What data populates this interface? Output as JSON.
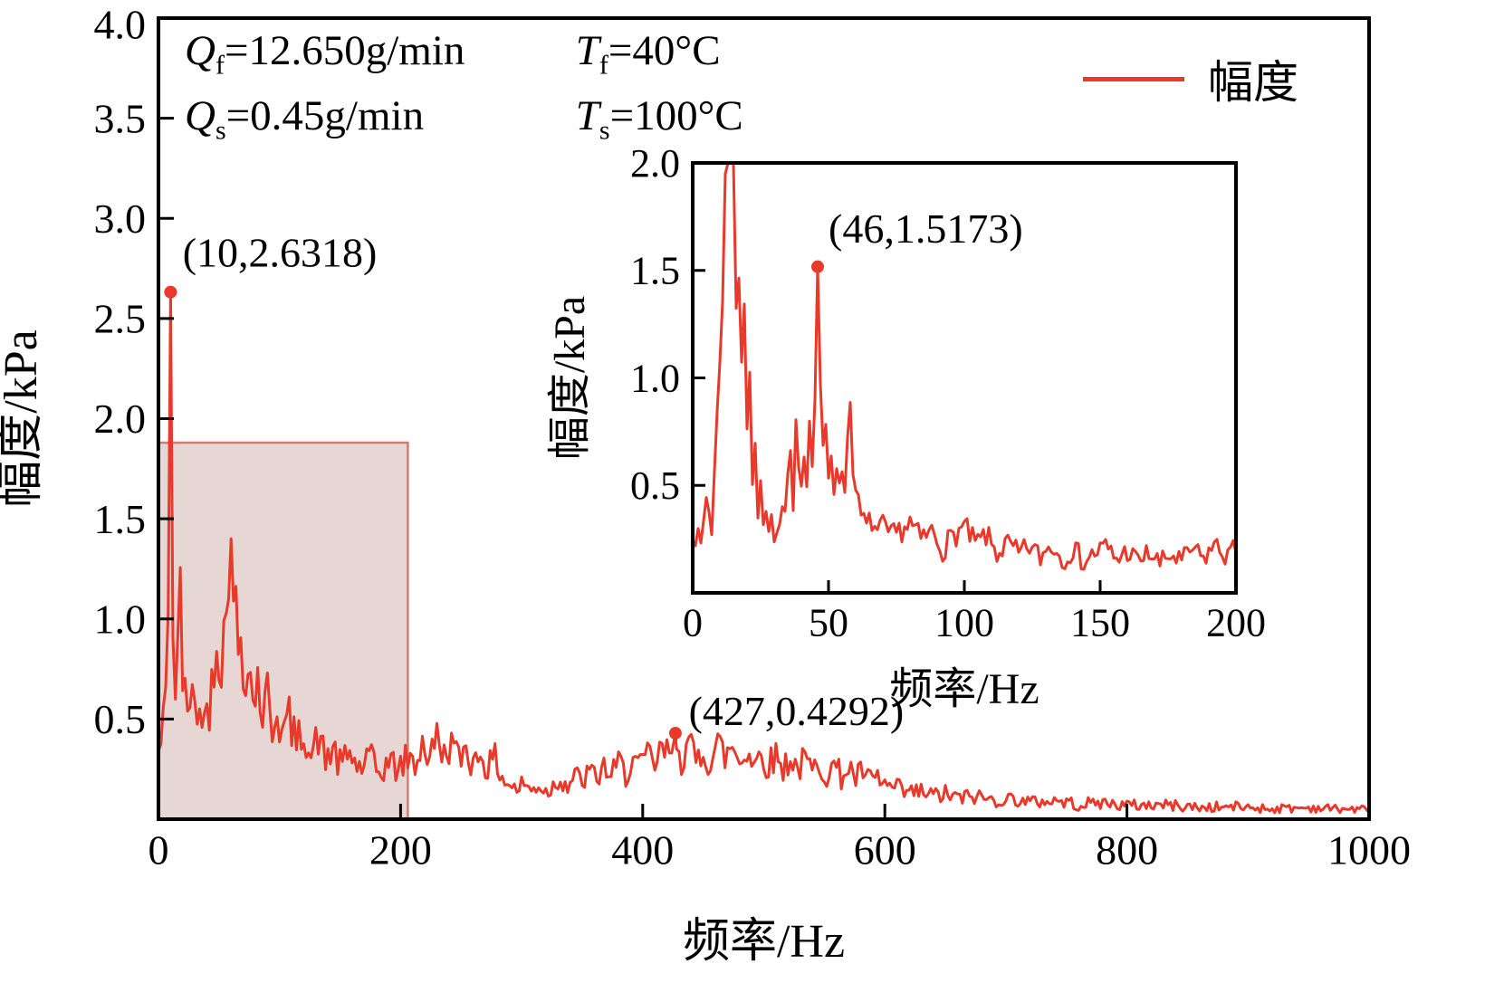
{
  "figure": {
    "colors": {
      "series": "#e8392b",
      "text": "#000000",
      "frame": "#000000"
    },
    "legend": {
      "label": "幅度"
    },
    "conditions": {
      "line1": {
        "p1_var": "Q",
        "p1_sub": "f",
        "p1_rest": "=12.650g/min",
        "p2_var": "T",
        "p2_sub": "f",
        "p2_rest": "=40°C"
      },
      "line2": {
        "p1_var": "Q",
        "p1_sub": "s",
        "p1_rest": "=0.45g/min",
        "p2_var": "T",
        "p2_sub": "s",
        "p2_rest": "=100°C"
      }
    }
  },
  "chart_data": [
    {
      "id": "main",
      "type": "line",
      "xlabel": "频率/Hz",
      "ylabel": "幅度/kPa",
      "xlim": [
        0,
        1000
      ],
      "ylim": [
        0,
        4
      ],
      "grid": false,
      "legend_position": "top-right",
      "xticks": [
        {
          "v": 0,
          "label": "0"
        },
        {
          "v": 200,
          "label": "200"
        },
        {
          "v": 400,
          "label": "400"
        },
        {
          "v": 600,
          "label": "600"
        },
        {
          "v": 800,
          "label": "800"
        },
        {
          "v": 1000,
          "label": "1000"
        }
      ],
      "yticks": [
        {
          "v": 0.5,
          "label": "0.5"
        },
        {
          "v": 1,
          "label": "1.0"
        },
        {
          "v": 1.5,
          "label": "1.5"
        },
        {
          "v": 2,
          "label": "2.0"
        },
        {
          "v": 2.5,
          "label": "2.5"
        },
        {
          "v": 3,
          "label": "3.0"
        },
        {
          "v": 3.5,
          "label": "3.5"
        },
        {
          "v": 4,
          "label": "4.0"
        }
      ],
      "markers": [
        {
          "x": 10,
          "y": 2.6318
        },
        {
          "x": 427,
          "y": 0.4292
        }
      ],
      "annotations": [
        {
          "text": "(10,2.6318)",
          "x": 20,
          "y": 2.76
        },
        {
          "text": "(427,0.4292)",
          "x": 438,
          "y": 0.47
        }
      ],
      "highlight_region": {
        "x0": 0,
        "x1": 206,
        "y0": 0,
        "y1": 1.88,
        "fill": "rgba(193,154,148,0.40)",
        "stroke": "rgba(205,105,92,0.85)"
      },
      "series": [
        {
          "name": "幅度",
          "color": "#e8392b",
          "seed": 42,
          "sample_step": 2,
          "anchors": [
            [
              0,
              0.3
            ],
            [
              4,
              0.45
            ],
            [
              6,
              0.6
            ],
            [
              8,
              1.1
            ],
            [
              10,
              2.6318
            ],
            [
              12,
              0.95
            ],
            [
              14,
              0.55
            ],
            [
              16,
              0.8
            ],
            [
              18,
              1.25
            ],
            [
              20,
              0.7
            ],
            [
              24,
              0.45
            ],
            [
              28,
              0.75
            ],
            [
              32,
              0.4
            ],
            [
              36,
              0.6
            ],
            [
              40,
              0.45
            ],
            [
              44,
              0.7
            ],
            [
              48,
              0.9
            ],
            [
              52,
              0.75
            ],
            [
              56,
              1.0
            ],
            [
              60,
              1.5
            ],
            [
              62,
              0.95
            ],
            [
              64,
              1.15
            ],
            [
              66,
              0.7
            ],
            [
              68,
              0.95
            ],
            [
              70,
              0.65
            ],
            [
              74,
              0.85
            ],
            [
              78,
              0.55
            ],
            [
              82,
              0.7
            ],
            [
              86,
              0.5
            ],
            [
              90,
              0.62
            ],
            [
              94,
              0.45
            ],
            [
              98,
              0.55
            ],
            [
              102,
              0.4
            ],
            [
              108,
              0.5
            ],
            [
              114,
              0.35
            ],
            [
              120,
              0.45
            ],
            [
              126,
              0.3
            ],
            [
              132,
              0.4
            ],
            [
              138,
              0.28
            ],
            [
              144,
              0.35
            ],
            [
              150,
              0.25
            ],
            [
              158,
              0.32
            ],
            [
              166,
              0.24
            ],
            [
              174,
              0.3
            ],
            [
              182,
              0.22
            ],
            [
              190,
              0.28
            ],
            [
              198,
              0.24
            ],
            [
              206,
              0.3
            ],
            [
              212,
              0.26
            ],
            [
              218,
              0.38
            ],
            [
              224,
              0.28
            ],
            [
              230,
              0.42
            ],
            [
              236,
              0.3
            ],
            [
              242,
              0.38
            ],
            [
              248,
              0.28
            ],
            [
              254,
              0.36
            ],
            [
              260,
              0.26
            ],
            [
              266,
              0.34
            ],
            [
              272,
              0.24
            ],
            [
              278,
              0.3
            ],
            [
              284,
              0.2
            ],
            [
              290,
              0.17
            ],
            [
              296,
              0.14
            ],
            [
              302,
              0.18
            ],
            [
              308,
              0.13
            ],
            [
              314,
              0.17
            ],
            [
              320,
              0.13
            ],
            [
              326,
              0.16
            ],
            [
              332,
              0.2
            ],
            [
              338,
              0.16
            ],
            [
              344,
              0.22
            ],
            [
              350,
              0.17
            ],
            [
              356,
              0.24
            ],
            [
              362,
              0.19
            ],
            [
              368,
              0.26
            ],
            [
              374,
              0.2
            ],
            [
              380,
              0.28
            ],
            [
              386,
              0.22
            ],
            [
              392,
              0.3
            ],
            [
              398,
              0.24
            ],
            [
              404,
              0.32
            ],
            [
              410,
              0.26
            ],
            [
              416,
              0.34
            ],
            [
              422,
              0.3
            ],
            [
              427,
              0.4292
            ],
            [
              432,
              0.3
            ],
            [
              438,
              0.36
            ],
            [
              444,
              0.28
            ],
            [
              450,
              0.34
            ],
            [
              456,
              0.27
            ],
            [
              462,
              0.38
            ],
            [
              468,
              0.3
            ],
            [
              474,
              0.36
            ],
            [
              480,
              0.28
            ],
            [
              486,
              0.34
            ],
            [
              492,
              0.27
            ],
            [
              498,
              0.32
            ],
            [
              504,
              0.26
            ],
            [
              510,
              0.31
            ],
            [
              516,
              0.25
            ],
            [
              522,
              0.3
            ],
            [
              528,
              0.24
            ],
            [
              534,
              0.29
            ],
            [
              540,
              0.23
            ],
            [
              546,
              0.27
            ],
            [
              552,
              0.22
            ],
            [
              558,
              0.26
            ],
            [
              564,
              0.21
            ],
            [
              570,
              0.25
            ],
            [
              576,
              0.2
            ],
            [
              582,
              0.23
            ],
            [
              588,
              0.18
            ],
            [
              594,
              0.2
            ],
            [
              600,
              0.16
            ],
            [
              610,
              0.14
            ],
            [
              620,
              0.12
            ],
            [
              630,
              0.13
            ],
            [
              640,
              0.11
            ],
            [
              650,
              0.12
            ],
            [
              660,
              0.1
            ],
            [
              675,
              0.11
            ],
            [
              690,
              0.09
            ],
            [
              705,
              0.1
            ],
            [
              720,
              0.08
            ],
            [
              740,
              0.09
            ],
            [
              760,
              0.07
            ],
            [
              780,
              0.08
            ],
            [
              800,
              0.065
            ],
            [
              830,
              0.07
            ],
            [
              860,
              0.055
            ],
            [
              890,
              0.06
            ],
            [
              920,
              0.05
            ],
            [
              950,
              0.055
            ],
            [
              1000,
              0.045
            ]
          ],
          "noise": [
            [
              0,
              0.13
            ],
            [
              60,
              0.18
            ],
            [
              100,
              0.12
            ],
            [
              150,
              0.09
            ],
            [
              200,
              0.08
            ],
            [
              260,
              0.09
            ],
            [
              300,
              0.05
            ],
            [
              360,
              0.06
            ],
            [
              430,
              0.09
            ],
            [
              520,
              0.08
            ],
            [
              600,
              0.06
            ],
            [
              700,
              0.035
            ],
            [
              800,
              0.03
            ],
            [
              1000,
              0.02
            ]
          ]
        }
      ]
    },
    {
      "id": "inset",
      "type": "line",
      "xlabel": "频率/Hz",
      "ylabel": "幅度/kPa",
      "xlim": [
        0,
        200
      ],
      "ylim": [
        0,
        2
      ],
      "grid": false,
      "legend_position": "none",
      "xticks": [
        {
          "v": 0,
          "label": "0"
        },
        {
          "v": 50,
          "label": "50"
        },
        {
          "v": 100,
          "label": "100"
        },
        {
          "v": 150,
          "label": "150"
        },
        {
          "v": 200,
          "label": "200"
        }
      ],
      "yticks": [
        {
          "v": 0.5,
          "label": "0.5"
        },
        {
          "v": 1,
          "label": "1.0"
        },
        {
          "v": 1.5,
          "label": "1.5"
        },
        {
          "v": 2,
          "label": "2.0"
        }
      ],
      "markers": [
        {
          "x": 46,
          "y": 1.5173
        }
      ],
      "annotations": [
        {
          "text": "(46,1.5173)",
          "x": 50,
          "y": 1.63
        }
      ],
      "series": [
        {
          "name": "幅度",
          "color": "#e8392b",
          "seed": 7,
          "sample_step": 1,
          "anchors": [
            [
              0,
              0.3
            ],
            [
              3,
              0.2
            ],
            [
              5,
              0.45
            ],
            [
              7,
              0.3
            ],
            [
              9,
              0.8
            ],
            [
              11,
              1.4
            ],
            [
              13,
              2.4
            ],
            [
              15,
              2.1
            ],
            [
              16,
              1.35
            ],
            [
              17,
              1.45
            ],
            [
              18,
              1.1
            ],
            [
              19,
              1.25
            ],
            [
              20,
              0.8
            ],
            [
              21,
              0.95
            ],
            [
              22,
              0.55
            ],
            [
              23,
              0.75
            ],
            [
              24,
              0.4
            ],
            [
              25,
              0.55
            ],
            [
              26,
              0.3
            ],
            [
              28,
              0.35
            ],
            [
              30,
              0.22
            ],
            [
              32,
              0.28
            ],
            [
              34,
              0.35
            ],
            [
              36,
              0.6
            ],
            [
              37,
              0.45
            ],
            [
              38,
              0.85
            ],
            [
              39,
              0.6
            ],
            [
              40,
              0.5
            ],
            [
              41,
              0.7
            ],
            [
              42,
              0.55
            ],
            [
              43,
              0.75
            ],
            [
              44,
              0.6
            ],
            [
              45,
              0.9
            ],
            [
              46,
              1.5173
            ],
            [
              47,
              0.9
            ],
            [
              48,
              0.65
            ],
            [
              49,
              0.75
            ],
            [
              50,
              0.55
            ],
            [
              51,
              0.65
            ],
            [
              52,
              0.5
            ],
            [
              53,
              0.62
            ],
            [
              54,
              0.45
            ],
            [
              55,
              0.58
            ],
            [
              56,
              0.5
            ],
            [
              57,
              0.7
            ],
            [
              58,
              0.9
            ],
            [
              59,
              0.6
            ],
            [
              60,
              0.45
            ],
            [
              62,
              0.35
            ],
            [
              64,
              0.3
            ],
            [
              66,
              0.33
            ],
            [
              68,
              0.27
            ],
            [
              70,
              0.3
            ],
            [
              73,
              0.25
            ],
            [
              76,
              0.28
            ],
            [
              80,
              0.32
            ],
            [
              84,
              0.24
            ],
            [
              88,
              0.28
            ],
            [
              92,
              0.2
            ],
            [
              96,
              0.26
            ],
            [
              100,
              0.3
            ],
            [
              104,
              0.22
            ],
            [
              108,
              0.26
            ],
            [
              112,
              0.18
            ],
            [
              116,
              0.22
            ],
            [
              120,
              0.17
            ],
            [
              124,
              0.21
            ],
            [
              128,
              0.16
            ],
            [
              132,
              0.22
            ],
            [
              136,
              0.15
            ],
            [
              140,
              0.2
            ],
            [
              144,
              0.14
            ],
            [
              148,
              0.18
            ],
            [
              152,
              0.21
            ],
            [
              156,
              0.15
            ],
            [
              160,
              0.19
            ],
            [
              164,
              0.14
            ],
            [
              168,
              0.18
            ],
            [
              172,
              0.13
            ],
            [
              176,
              0.17
            ],
            [
              180,
              0.14
            ],
            [
              184,
              0.2
            ],
            [
              188,
              0.15
            ],
            [
              192,
              0.22
            ],
            [
              196,
              0.17
            ],
            [
              200,
              0.2
            ]
          ],
          "noise": [
            [
              0,
              0.06
            ],
            [
              20,
              0.09
            ],
            [
              40,
              0.08
            ],
            [
              60,
              0.06
            ],
            [
              100,
              0.06
            ],
            [
              200,
              0.05
            ]
          ]
        }
      ]
    }
  ]
}
